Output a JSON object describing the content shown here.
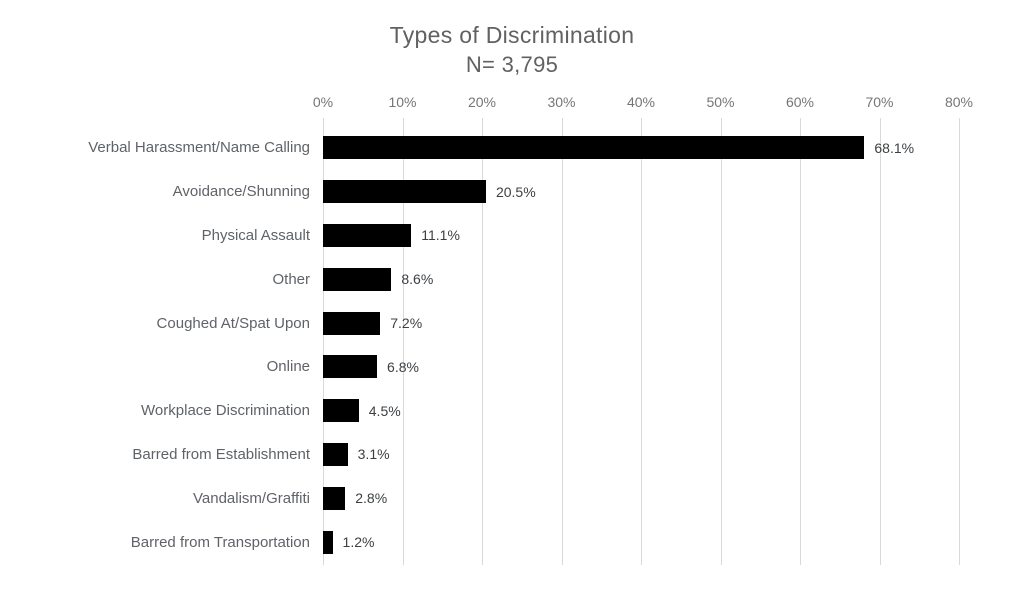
{
  "chart_data": {
    "type": "bar",
    "orientation": "horizontal",
    "title": "Types of Discrimination",
    "subtitle": "N= 3,795",
    "categories": [
      "Verbal Harassment/Name Calling",
      "Avoidance/Shunning",
      "Physical Assault",
      "Other",
      "Coughed At/Spat Upon",
      "Online",
      "Workplace Discrimination",
      "Barred from Establishment",
      "Vandalism/Graffiti",
      "Barred from Transportation"
    ],
    "values": [
      68.1,
      20.5,
      11.1,
      8.6,
      7.2,
      6.8,
      4.5,
      3.1,
      2.8,
      1.2
    ],
    "value_labels": [
      "68.1%",
      "20.5%",
      "11.1%",
      "8.6%",
      "7.2%",
      "6.8%",
      "4.5%",
      "3.1%",
      "2.8%",
      "1.2%"
    ],
    "xlim": [
      0,
      80
    ],
    "x_ticks": [
      "0%",
      "10%",
      "20%",
      "30%",
      "40%",
      "50%",
      "60%",
      "70%",
      "80%"
    ],
    "x_tick_step": 10,
    "grid": true,
    "legend": "none",
    "axis_position": "top",
    "colors": {
      "background": "#ffffff",
      "bar": "#000000",
      "title": "#616161",
      "subtitle": "#616161",
      "axis_tick_labels": "#757575",
      "category_labels": "#5f6368",
      "value_labels": "#3c4043",
      "gridline": "#d9d9d9"
    }
  }
}
